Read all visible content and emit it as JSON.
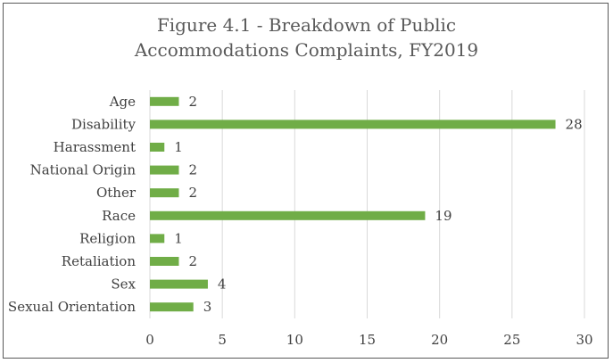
{
  "chart_data": {
    "type": "bar",
    "orientation": "horizontal",
    "title_lines": [
      "Figure 4.1 - Breakdown of Public",
      "Accommodations Complaints, FY2019"
    ],
    "categories": [
      "Age",
      "Disability",
      "Harassment",
      "National Origin",
      "Other",
      "Race",
      "Religion",
      "Retaliation",
      "Sex",
      "Sexual Orientation"
    ],
    "values": [
      2,
      28,
      1,
      2,
      2,
      19,
      1,
      2,
      4,
      3
    ],
    "xlim": [
      0,
      30
    ],
    "x_ticks": [
      0,
      5,
      10,
      15,
      20,
      25,
      30
    ],
    "grid": "vertical",
    "legend": "none",
    "data_labels": true,
    "colors": {
      "bar": "#70ad47",
      "grid": "#d9d9d9",
      "text": "#404040",
      "title": "#595959"
    }
  }
}
